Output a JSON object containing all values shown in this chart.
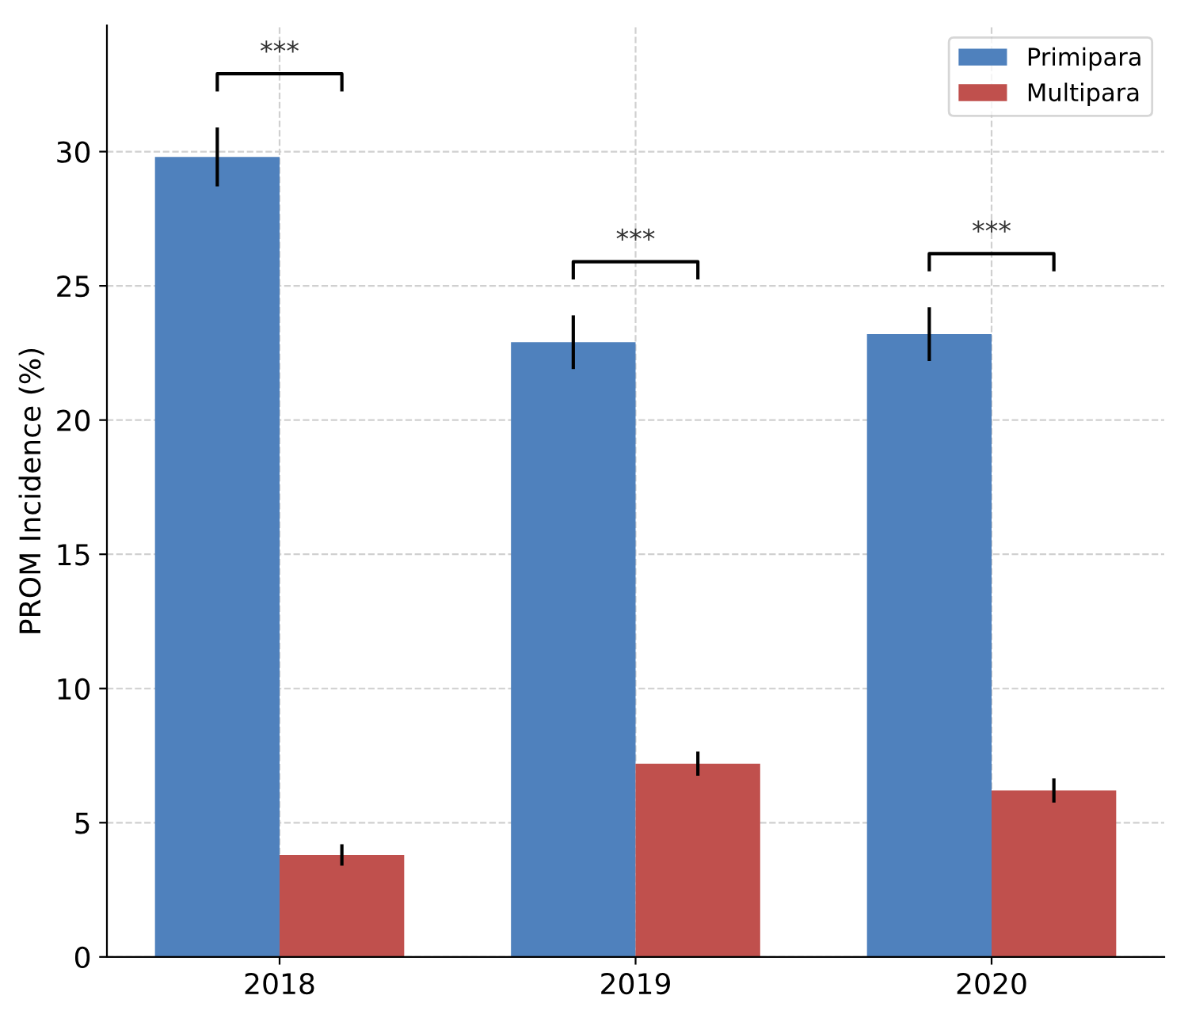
{
  "chart_data": {
    "type": "bar",
    "ylabel": "PROM Incidence (%)",
    "categories": [
      "2018",
      "2019",
      "2020"
    ],
    "series": [
      {
        "name": "Primipara",
        "color": "#4f81bd",
        "values": [
          29.8,
          22.9,
          23.2
        ],
        "errors": [
          1.1,
          1.0,
          1.0
        ]
      },
      {
        "name": "Multipara",
        "color": "#c0504d",
        "values": [
          3.8,
          7.2,
          6.2
        ],
        "errors": [
          0.4,
          0.45,
          0.45
        ]
      }
    ],
    "annotations": [
      "***",
      "***",
      "***"
    ],
    "ylim": [
      0,
      34.7
    ],
    "yticks": [
      0,
      5,
      10,
      15,
      20,
      25,
      30
    ],
    "grid": true,
    "legend": "top right"
  }
}
